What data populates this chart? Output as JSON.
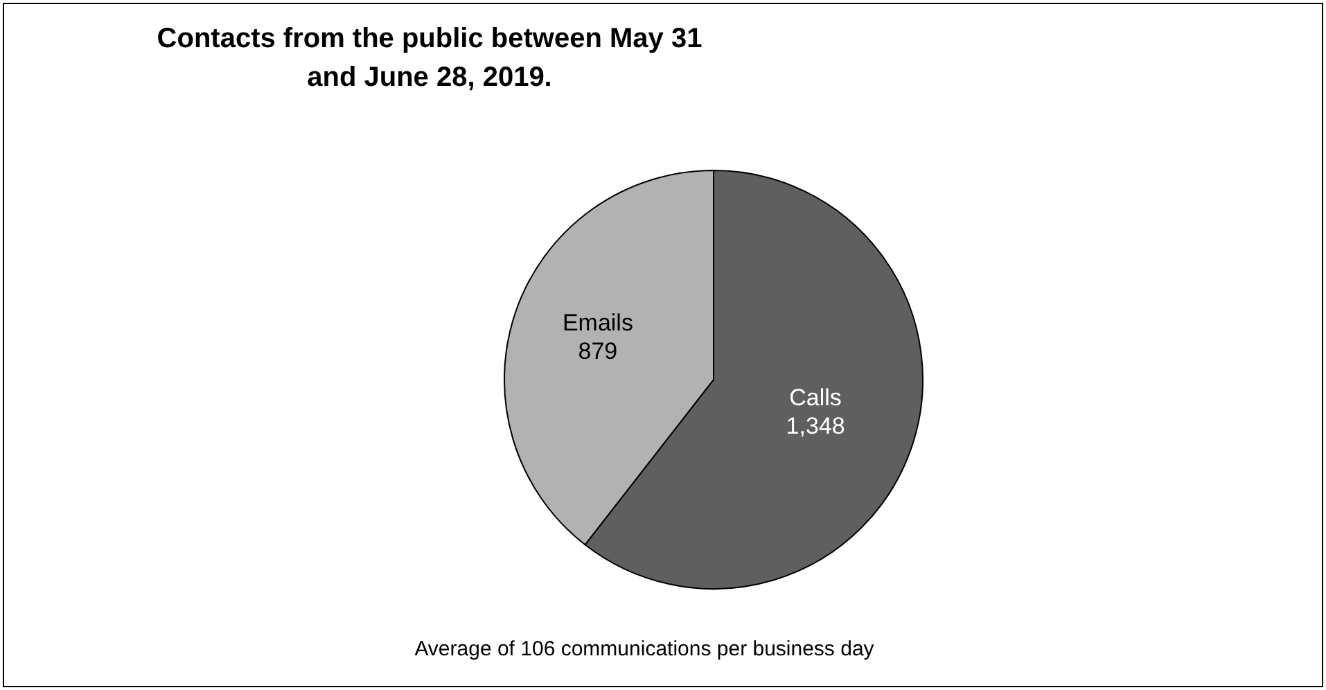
{
  "chart_data": {
    "type": "pie",
    "title": "Contacts from the public between May 31\nand June 28, 2019.",
    "categories": [
      "Calls",
      "Emails"
    ],
    "values": [
      1348,
      879
    ],
    "colors": [
      "#5f5f5f",
      "#b2b2b2"
    ],
    "value_labels": [
      "1,348",
      "879"
    ],
    "annotations": [
      "Average of 106 communications per business day"
    ],
    "legend": false
  }
}
